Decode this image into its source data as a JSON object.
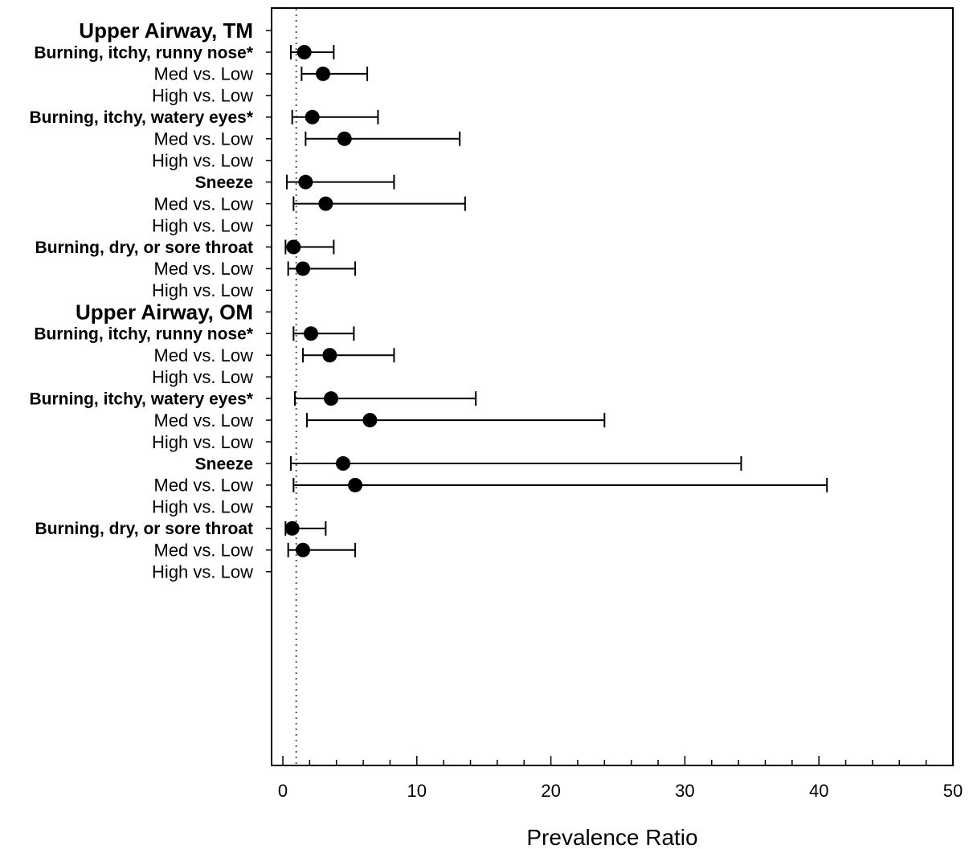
{
  "chart_data": {
    "type": "forest",
    "xlabel": "Prevalence Ratio",
    "xlim": [
      -1,
      50
    ],
    "xticks": [
      0,
      10,
      20,
      30,
      40,
      50
    ],
    "xtick_labels": [
      "0",
      "10",
      "20",
      "30",
      "40",
      "50"
    ],
    "reference_line": 1,
    "rows": [
      {
        "label": "Upper Airway, TM",
        "type": "header"
      },
      {
        "label": "Burning, itchy, runny nose*",
        "type": "category",
        "pr": 1.6,
        "lo": 0.6,
        "hi": 3.8
      },
      {
        "label": "Med vs. Low",
        "type": "level",
        "pr": 3.0,
        "lo": 1.4,
        "hi": 6.3
      },
      {
        "label": "High vs. Low",
        "type": "level"
      },
      {
        "label": "Burning, itchy, watery eyes*",
        "type": "category",
        "pr": 2.2,
        "lo": 0.7,
        "hi": 7.1
      },
      {
        "label": "Med vs. Low",
        "type": "level",
        "pr": 4.6,
        "lo": 1.7,
        "hi": 13.2
      },
      {
        "label": "High vs. Low",
        "type": "level"
      },
      {
        "label": "Sneeze",
        "type": "category",
        "pr": 1.7,
        "lo": 0.3,
        "hi": 8.3
      },
      {
        "label": "Med vs. Low",
        "type": "level",
        "pr": 3.2,
        "lo": 0.8,
        "hi": 13.6
      },
      {
        "label": "High vs. Low",
        "type": "level"
      },
      {
        "label": "Burning, dry, or sore throat",
        "type": "category",
        "pr": 0.8,
        "lo": 0.2,
        "hi": 3.8
      },
      {
        "label": "Med vs. Low",
        "type": "level",
        "pr": 1.5,
        "lo": 0.4,
        "hi": 5.4
      },
      {
        "label": "High vs. Low",
        "type": "level"
      },
      {
        "label": "Upper Airway, OM",
        "type": "header"
      },
      {
        "label": "Burning, itchy, runny nose*",
        "type": "category",
        "pr": 2.1,
        "lo": 0.8,
        "hi": 5.3
      },
      {
        "label": "Med vs. Low",
        "type": "level",
        "pr": 3.5,
        "lo": 1.5,
        "hi": 8.3
      },
      {
        "label": "High vs. Low",
        "type": "level"
      },
      {
        "label": "Burning, itchy, watery eyes*",
        "type": "category",
        "pr": 3.6,
        "lo": 0.9,
        "hi": 14.4
      },
      {
        "label": "Med vs. Low",
        "type": "level",
        "pr": 6.5,
        "lo": 1.8,
        "hi": 24.0
      },
      {
        "label": "High vs. Low",
        "type": "level"
      },
      {
        "label": "Sneeze",
        "type": "category",
        "pr": 4.5,
        "lo": 0.6,
        "hi": 34.2
      },
      {
        "label": "Med vs. Low",
        "type": "level",
        "pr": 5.4,
        "lo": 0.8,
        "hi": 40.6
      },
      {
        "label": "High vs. Low",
        "type": "level"
      },
      {
        "label": "Burning, dry, or sore throat",
        "type": "category",
        "pr": 0.7,
        "lo": 0.2,
        "hi": 3.2
      },
      {
        "label": "Med vs. Low",
        "type": "level",
        "pr": 1.5,
        "lo": 0.4,
        "hi": 5.4
      },
      {
        "label": "High vs. Low",
        "type": "level"
      }
    ]
  }
}
